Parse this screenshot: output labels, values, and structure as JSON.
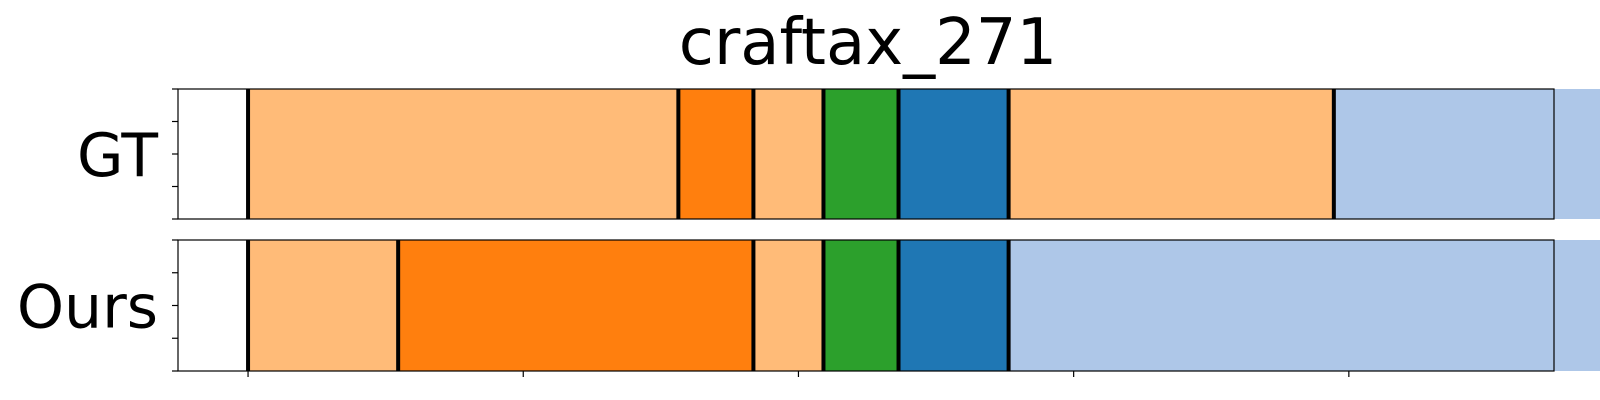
{
  "chart_data": {
    "type": "bar",
    "title": "craftax_271",
    "xlim": [
      0,
      275
    ],
    "x_ticks": [
      14,
      69,
      124,
      179,
      234,
      289
    ],
    "y_ticks": [
      0,
      0.25,
      0.5,
      0.75,
      1
    ],
    "colors": {
      "light_orange": "#ffbb78",
      "orange": "#ff7f0e",
      "green": "#2ca02c",
      "blue": "#1f77b4",
      "light_blue": "#aec7e8"
    },
    "series": [
      {
        "name": "GT",
        "segments": [
          {
            "start": 14,
            "end": 100,
            "color": "light_orange"
          },
          {
            "start": 100,
            "end": 115,
            "color": "orange"
          },
          {
            "start": 115,
            "end": 129,
            "color": "light_orange"
          },
          {
            "start": 129,
            "end": 144,
            "color": "green"
          },
          {
            "start": 144,
            "end": 166,
            "color": "blue"
          },
          {
            "start": 166,
            "end": 231,
            "color": "light_orange"
          },
          {
            "start": 231,
            "end": 289,
            "color": "light_blue"
          }
        ]
      },
      {
        "name": "Ours",
        "segments": [
          {
            "start": 14,
            "end": 44,
            "color": "light_orange"
          },
          {
            "start": 44,
            "end": 115,
            "color": "orange"
          },
          {
            "start": 115,
            "end": 129,
            "color": "light_orange"
          },
          {
            "start": 129,
            "end": 144,
            "color": "green"
          },
          {
            "start": 144,
            "end": 166,
            "color": "blue"
          },
          {
            "start": 166,
            "end": 289,
            "color": "light_blue"
          }
        ]
      }
    ]
  }
}
